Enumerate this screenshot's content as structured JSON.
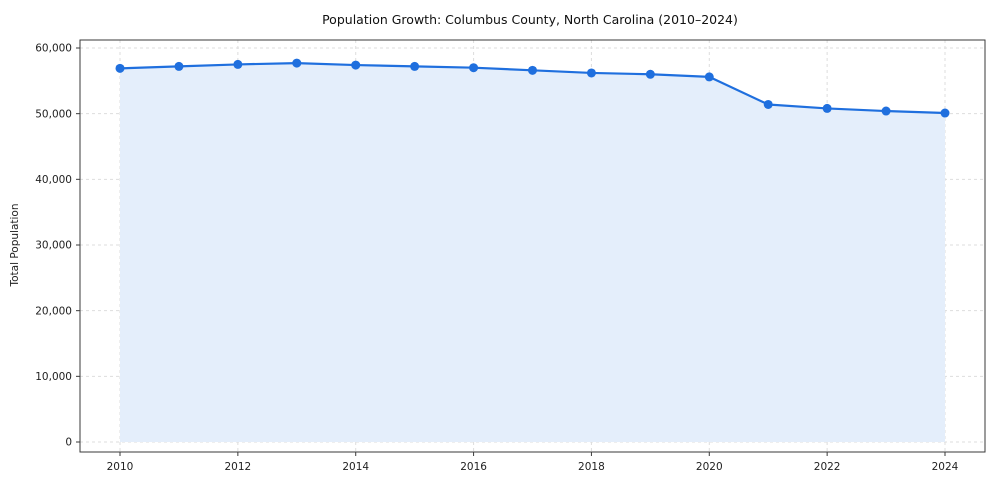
{
  "chart_data": {
    "type": "area",
    "title": "Population Growth: Columbus County, North Carolina (2010–2024)",
    "xlabel": "",
    "ylabel": "Total Population",
    "x": [
      2010,
      2011,
      2012,
      2013,
      2014,
      2015,
      2016,
      2017,
      2018,
      2019,
      2020,
      2021,
      2022,
      2023,
      2024
    ],
    "values": [
      56900,
      57200,
      57500,
      57700,
      57400,
      57200,
      57000,
      56600,
      56200,
      56000,
      55600,
      51400,
      50800,
      50400,
      50100
    ],
    "series_name": "Total Population",
    "ylim": [
      0,
      60000
    ],
    "xlim": [
      2010,
      2024
    ],
    "grid": true,
    "legend_position": "none",
    "x_ticks": [
      {
        "value": 2010,
        "label": "2010"
      },
      {
        "value": 2012,
        "label": "2012"
      },
      {
        "value": 2014,
        "label": "2014"
      },
      {
        "value": 2016,
        "label": "2016"
      },
      {
        "value": 2018,
        "label": "2018"
      },
      {
        "value": 2020,
        "label": "2020"
      },
      {
        "value": 2022,
        "label": "2022"
      },
      {
        "value": 2024,
        "label": "2024"
      }
    ],
    "y_ticks": [
      {
        "value": 0,
        "label": "0"
      },
      {
        "value": 10000,
        "label": "10,000"
      },
      {
        "value": 20000,
        "label": "20,000"
      },
      {
        "value": 30000,
        "label": "30,000"
      },
      {
        "value": 40000,
        "label": "40,000"
      },
      {
        "value": 50000,
        "label": "50,000"
      },
      {
        "value": 60000,
        "label": "60,000"
      }
    ],
    "colors": {
      "line": "#1f6fde",
      "fill": "#e4eefb",
      "marker": "#1f6fde",
      "grid": "#dddddd",
      "spine": "#3a3a3a",
      "tick": "#3a3a3a"
    }
  }
}
